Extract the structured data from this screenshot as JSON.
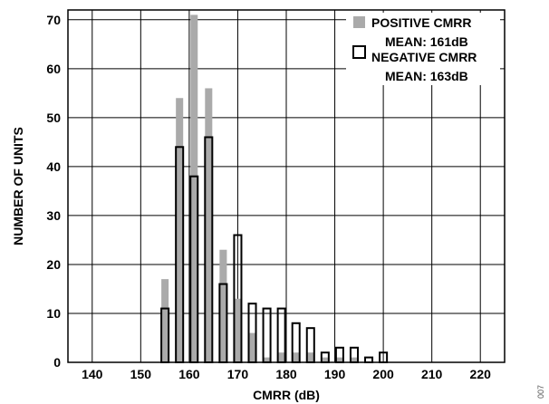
{
  "chart_data": {
    "type": "bar",
    "title": "",
    "xlabel": "CMRR (dB)",
    "ylabel": "NUMBER OF UNITS",
    "xlim": [
      135,
      225
    ],
    "ylim": [
      0,
      72
    ],
    "x_ticks": [
      140,
      150,
      160,
      170,
      180,
      190,
      200,
      210,
      220
    ],
    "y_ticks": [
      0,
      10,
      20,
      30,
      40,
      50,
      60,
      70
    ],
    "grid": true,
    "legend_position": "top-right",
    "bin_width": 1.5,
    "series": [
      {
        "name": "POSITIVE CMRR",
        "stat": "MEAN: 161dB",
        "style": "filled",
        "color": "#aaaaaa",
        "x": [
          155,
          156.5,
          158,
          159.5,
          161,
          162.5,
          164,
          165.5,
          167,
          168.5,
          170,
          171.5,
          173,
          174.5,
          176,
          177.5,
          179,
          180.5,
          182,
          183.5,
          185,
          186.5,
          188,
          189.5,
          191,
          192.5,
          194,
          195.5,
          197
        ],
        "values": [
          17,
          0,
          54,
          0,
          71,
          0,
          56,
          0,
          23,
          0,
          13,
          0,
          6,
          0,
          1,
          0,
          2,
          0,
          2,
          0,
          2,
          0,
          1,
          0,
          1,
          0,
          1,
          0,
          0
        ]
      },
      {
        "name": "NEGATIVE CMRR",
        "stat": "MEAN: 163dB",
        "style": "outline",
        "color": "#000000",
        "x": [
          155,
          156.5,
          158,
          159.5,
          161,
          162.5,
          164,
          165.5,
          167,
          168.5,
          170,
          171.5,
          173,
          174.5,
          176,
          177.5,
          179,
          180.5,
          182,
          183.5,
          185,
          186.5,
          188,
          189.5,
          191,
          192.5,
          194,
          195.5,
          197,
          198.5,
          200,
          201.5,
          203,
          204.5
        ],
        "values": [
          11,
          0,
          44,
          0,
          38,
          0,
          46,
          0,
          16,
          0,
          26,
          0,
          12,
          0,
          11,
          0,
          11,
          0,
          8,
          0,
          7,
          0,
          2,
          0,
          3,
          0,
          3,
          0,
          1,
          0,
          2,
          0,
          0,
          0
        ]
      }
    ]
  },
  "figure_id": "007"
}
